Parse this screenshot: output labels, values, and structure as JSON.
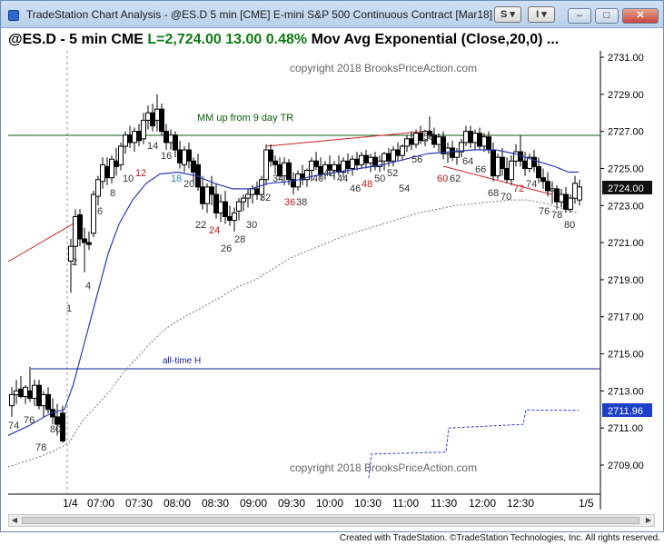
{
  "window": {
    "title": "TradeStation Chart Analysis - @ES.D 5 min [CME] E-mini S&P 500 Continuous Contract [Mar18]",
    "btn_s": "S",
    "btn_i": "I",
    "minimize": "–",
    "maximize": "□",
    "close": "✕"
  },
  "header": {
    "symbol": "@ES.D - 5 min  CME",
    "last": "L=2,724.00  13.00  0.48%",
    "indicator": "Mov Avg Exponential (Close,20,0)  ..."
  },
  "chart": {
    "copyright_top": "copyright 2018 BrooksPriceAction.com",
    "copyright_bottom": "copyright 2018 BrooksPriceAction.com",
    "annotations": {
      "mm": "MM up from 9 day TR",
      "ath": "all-time H"
    },
    "price_badge": "2724.00",
    "price_badge2": "2711.96",
    "y_labels": [
      "2731.00",
      "2729.00",
      "2727.00",
      "2725.00",
      "2723.00",
      "2721.00",
      "2719.00",
      "2717.00",
      "2715.00",
      "2713.00",
      "2711.00",
      "2709.00"
    ],
    "x_labels": [
      "1/4",
      "07:00",
      "07:30",
      "08:00",
      "08:30",
      "09:00",
      "09:30",
      "10:00",
      "10:30",
      "11:00",
      "11:30",
      "12:00",
      "12:30",
      "1/5"
    ],
    "bar_labels": [
      "1",
      "2",
      "4",
      "6",
      "8",
      "10",
      "12",
      "14",
      "16",
      "18",
      "20",
      "22",
      "24",
      "26",
      "28",
      "30",
      "32",
      "34",
      "36",
      "38",
      "40",
      "42",
      "44",
      "46",
      "48",
      "50",
      "52",
      "54",
      "56",
      "58",
      "60",
      "62",
      "64",
      "66",
      "68",
      "70",
      "72",
      "74",
      "76",
      "78",
      "80",
      "74",
      "76",
      "78",
      "80"
    ]
  },
  "footer": {
    "text": "Created with TradeStation. ©TradeStation Technologies, Inc. All rights reserved."
  },
  "colors": {
    "ema": "#2a3bb8",
    "line_green": "#0a5c0a",
    "line_red": "#d02020",
    "line_blue": "#1a1a9c",
    "up_label": "#333333",
    "red_label": "#c01818",
    "blue_label": "#1e7fd0"
  }
}
